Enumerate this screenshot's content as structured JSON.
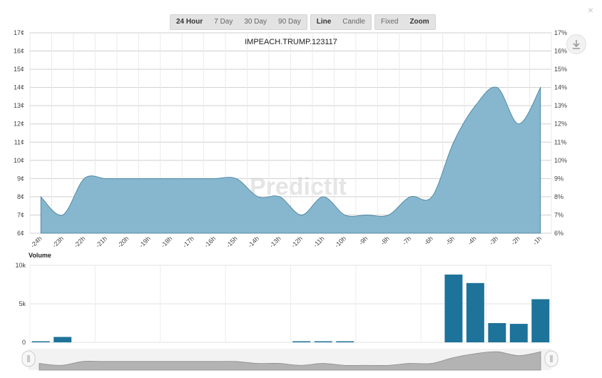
{
  "toolbar": {
    "range_buttons": [
      "24 Hour",
      "7 Day",
      "30 Day",
      "90 Day"
    ],
    "range_active": "24 Hour",
    "type_buttons": [
      "Line",
      "Candle"
    ],
    "type_active": "Line",
    "scale_buttons": [
      "Fixed",
      "Zoom"
    ],
    "scale_active": "Zoom"
  },
  "close_glyph": "×",
  "watermark": "PredictIt",
  "colors": {
    "price_fill": "#86b7cf",
    "price_line": "#3f7c98",
    "volume_bar": "#1d7399",
    "navigator_fill": "#b3b3b3"
  },
  "chart_data": [
    {
      "type": "area",
      "title": "IMPEACH.TRUMP.123117",
      "x": [
        "-24h",
        "-23h",
        "-22h",
        "-21h",
        "-20h",
        "-19h",
        "-18h",
        "-17h",
        "-16h",
        "-15h",
        "-14h",
        "-13h",
        "-12h",
        "-11h",
        "-10h",
        "-9h",
        "-8h",
        "-7h",
        "-6h",
        "-5h",
        "-4h",
        "-3h",
        "-2h",
        "-1h"
      ],
      "values": [
        8,
        7,
        9,
        9,
        9,
        9,
        9,
        9,
        9,
        9,
        8,
        8,
        7,
        8,
        7,
        7,
        7,
        8,
        8,
        11,
        13,
        14,
        12,
        14
      ],
      "ylim": [
        6,
        17
      ],
      "left_ticks": [
        "6¢",
        "7¢",
        "8¢",
        "9¢",
        "10¢",
        "11¢",
        "12¢",
        "13¢",
        "14¢",
        "15¢",
        "16¢",
        "17¢"
      ],
      "right_ticks": [
        "6%",
        "7%",
        "8%",
        "9%",
        "10%",
        "11%",
        "12%",
        "13%",
        "14%",
        "15%",
        "16%",
        "17%"
      ],
      "grid": true
    },
    {
      "type": "bar",
      "title": "Volume",
      "x": [
        "-24h",
        "-23h",
        "-22h",
        "-21h",
        "-20h",
        "-19h",
        "-18h",
        "-17h",
        "-16h",
        "-15h",
        "-14h",
        "-13h",
        "-12h",
        "-11h",
        "-10h",
        "-9h",
        "-8h",
        "-7h",
        "-6h",
        "-5h",
        "-4h",
        "-3h",
        "-2h",
        "-1h"
      ],
      "values": [
        100,
        700,
        0,
        0,
        0,
        0,
        0,
        0,
        0,
        0,
        0,
        0,
        50,
        50,
        50,
        0,
        0,
        0,
        0,
        8800,
        7700,
        2500,
        2400,
        5600
      ],
      "ylim": [
        0,
        10000
      ],
      "ticks": [
        "0",
        "5k",
        "10k"
      ],
      "grid": true
    }
  ]
}
